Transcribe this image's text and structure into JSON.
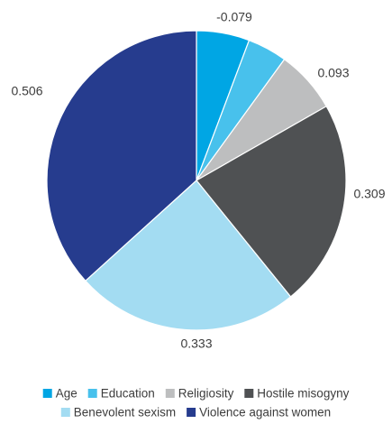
{
  "chart_data": {
    "type": "pie",
    "title": "",
    "start_angle_deg": 0,
    "direction": "clockwise",
    "slices": [
      {
        "name": "Age",
        "value": 0.079,
        "label": "-0.079",
        "color": "#00a6e4"
      },
      {
        "name": "Education",
        "value": 0.059,
        "label": "",
        "color": "#48c1ec"
      },
      {
        "name": "Religiosity",
        "value": 0.093,
        "label": "0.093",
        "color": "#bdbebf"
      },
      {
        "name": "Hostile misogyny",
        "value": 0.309,
        "label": "0.309",
        "color": "#4f5153"
      },
      {
        "name": "Benevolent sexism",
        "value": 0.333,
        "label": "0.333",
        "color": "#a3dcf2"
      },
      {
        "name": "Violence against women",
        "value": 0.506,
        "label": "0.506",
        "color": "#263c8e"
      }
    ],
    "legend": {
      "position": "bottom",
      "rows": [
        [
          "Age",
          "Education",
          "Religiosity",
          "Hostile misogyny"
        ],
        [
          "Benevolent sexism",
          "Violence against women"
        ]
      ]
    }
  }
}
